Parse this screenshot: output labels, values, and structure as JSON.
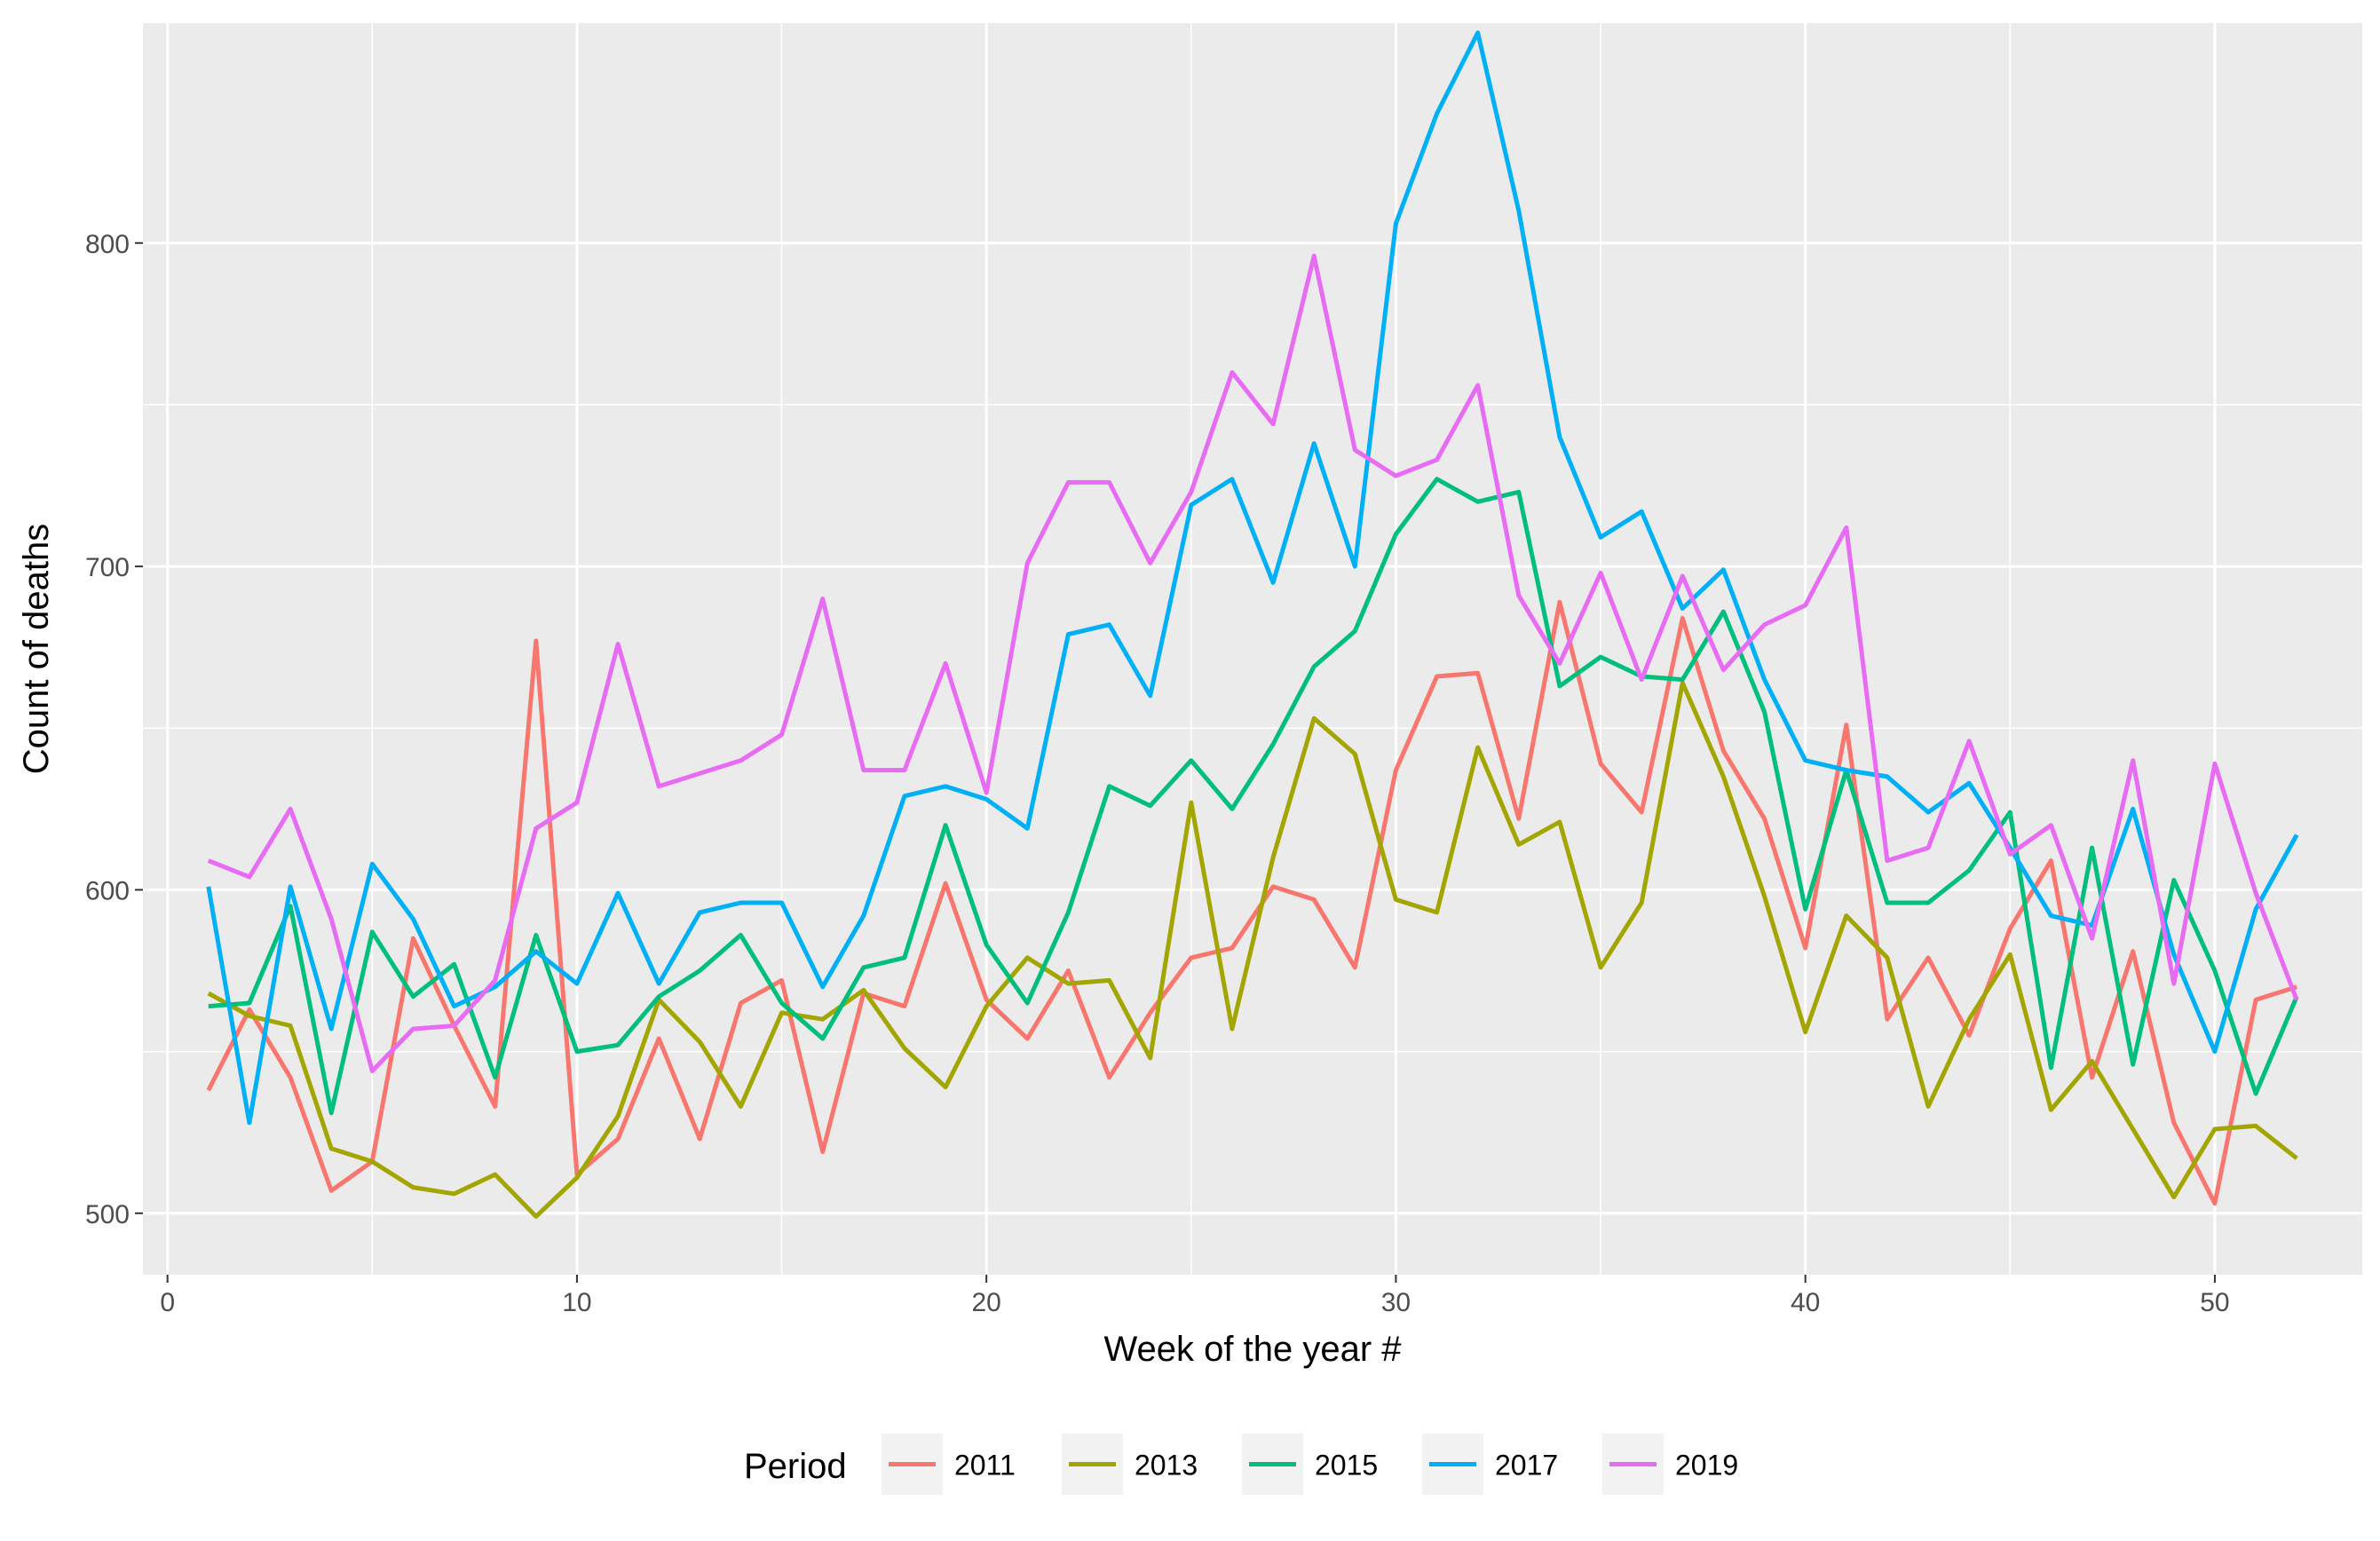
{
  "chart_data": {
    "type": "line",
    "xlabel": "Week of the year #",
    "ylabel": "Count of deaths",
    "xlim": [
      -0.6,
      53.6
    ],
    "ylim": [
      481,
      868
    ],
    "x_ticks": [
      0,
      10,
      20,
      30,
      40,
      50
    ],
    "y_ticks": [
      500,
      600,
      700,
      800
    ],
    "grid": true,
    "legend": {
      "title": "Period",
      "position": "bottom"
    },
    "x": [
      1,
      2,
      3,
      4,
      5,
      6,
      7,
      8,
      9,
      10,
      11,
      12,
      13,
      14,
      15,
      16,
      17,
      18,
      19,
      20,
      21,
      22,
      23,
      24,
      25,
      26,
      27,
      28,
      29,
      30,
      31,
      32,
      33,
      34,
      35,
      36,
      37,
      38,
      39,
      40,
      41,
      42,
      43,
      44,
      45,
      46,
      47,
      48,
      49,
      50,
      51,
      52
    ],
    "series": [
      {
        "name": "2011",
        "color": "#F8766D",
        "values": [
          538,
          563,
          542,
          507,
          516,
          585,
          558,
          533,
          677,
          512,
          523,
          554,
          523,
          565,
          572,
          519,
          568,
          564,
          602,
          566,
          554,
          575,
          542,
          562,
          579,
          582,
          601,
          597,
          576,
          637,
          666,
          667,
          622,
          689,
          639,
          624,
          684,
          643,
          622,
          582,
          651,
          560,
          579,
          555,
          588,
          609,
          542,
          581,
          528,
          503,
          566,
          570
        ]
      },
      {
        "name": "2013",
        "color": "#A3A500",
        "values": [
          568,
          561,
          558,
          520,
          516,
          508,
          506,
          512,
          499,
          511,
          530,
          566,
          553,
          533,
          562,
          560,
          569,
          551,
          539,
          564,
          579,
          571,
          572,
          548,
          627,
          557,
          610,
          653,
          642,
          597,
          593,
          644,
          614,
          621,
          576,
          596,
          664,
          635,
          598,
          556,
          592,
          579,
          533,
          560,
          580,
          532,
          547,
          526,
          505,
          526,
          527,
          517
        ]
      },
      {
        "name": "2015",
        "color": "#00BF7D",
        "values": [
          564,
          565,
          595,
          531,
          587,
          567,
          577,
          542,
          586,
          550,
          552,
          567,
          575,
          586,
          565,
          554,
          576,
          579,
          620,
          583,
          565,
          593,
          632,
          626,
          640,
          625,
          645,
          669,
          680,
          710,
          727,
          720,
          723,
          663,
          672,
          666,
          665,
          686,
          655,
          594,
          637,
          596,
          596,
          606,
          624,
          545,
          613,
          546,
          603,
          575,
          537,
          567
        ]
      },
      {
        "name": "2017",
        "color": "#00B0F6",
        "values": [
          601,
          528,
          601,
          557,
          608,
          591,
          564,
          570,
          581,
          571,
          599,
          571,
          593,
          596,
          596,
          570,
          592,
          629,
          632,
          628,
          619,
          679,
          682,
          660,
          719,
          727,
          695,
          738,
          700,
          806,
          840,
          865,
          810,
          740,
          709,
          717,
          687,
          699,
          665,
          640,
          637,
          635,
          624,
          633,
          613,
          592,
          589,
          625,
          580,
          550,
          594,
          617
        ]
      },
      {
        "name": "2019",
        "color": "#E76BF3",
        "values": [
          609,
          604,
          625,
          591,
          544,
          557,
          558,
          572,
          619,
          627,
          676,
          632,
          636,
          640,
          648,
          690,
          637,
          637,
          670,
          630,
          701,
          726,
          726,
          701,
          723,
          760,
          744,
          796,
          736,
          728,
          733,
          756,
          691,
          670,
          698,
          665,
          697,
          668,
          682,
          688,
          712,
          609,
          613,
          646,
          611,
          620,
          585,
          640,
          571,
          639,
          599,
          566
        ]
      }
    ]
  }
}
